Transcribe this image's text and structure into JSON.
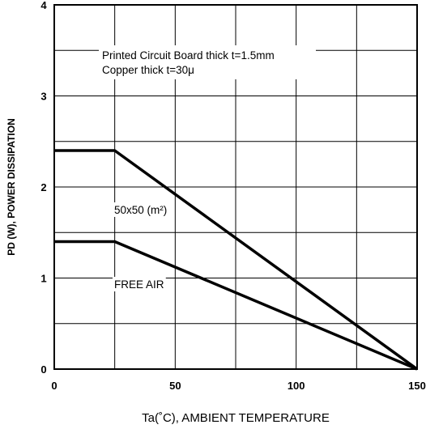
{
  "chart_data": {
    "type": "line",
    "xlabel": "Ta(˚C), AMBIENT TEMPERATURE",
    "ylabel": "PD (W), POWER DISSIPATION",
    "xlim": [
      0,
      150
    ],
    "ylim": [
      0,
      4
    ],
    "x_ticks": [
      "0",
      "50",
      "100",
      "150"
    ],
    "y_ticks": [
      "0",
      "1",
      "2",
      "3",
      "4"
    ],
    "grid": true,
    "annotation": [
      "Printed Circuit Board thick t=1.5mm",
      "Copper thick t=30μ"
    ],
    "series": [
      {
        "name": "50x50 (m²)",
        "x": [
          0,
          25,
          150
        ],
        "y": [
          2.4,
          2.4,
          0
        ]
      },
      {
        "name": "FREE AIR",
        "x": [
          0,
          25,
          150
        ],
        "y": [
          1.4,
          1.4,
          0
        ]
      }
    ]
  }
}
